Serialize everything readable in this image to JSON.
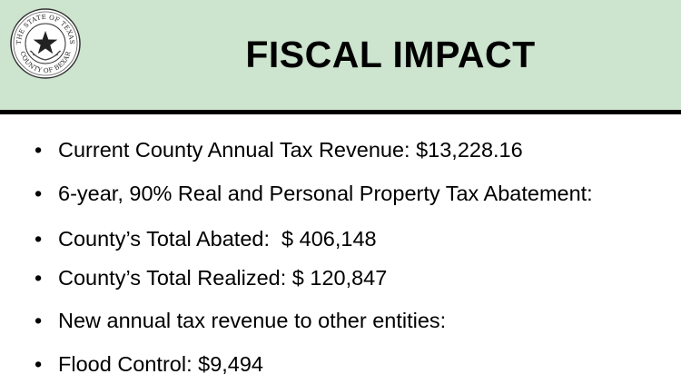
{
  "header": {
    "title": "FISCAL IMPACT",
    "seal": {
      "icon": "county-seal-icon",
      "text_top": "THE STATE OF TEXAS",
      "text_bottom": "COUNTY OF BEXAR"
    },
    "background_color": "#cde4cf"
  },
  "bullets": [
    {
      "marker": "•",
      "text": "Current County Annual Tax Revenue: $13,228.16"
    },
    {
      "marker": "•",
      "text": "6-year, 90% Real and Personal Property Tax Abatement:"
    },
    {
      "marker": "•",
      "text": "County’s Total Abated:  $ 406,148"
    },
    {
      "marker": "•",
      "text": "County’s Total Realized: $ 120,847"
    },
    {
      "marker": "•",
      "text": "New annual tax revenue to other entities:"
    },
    {
      "marker": "•",
      "text": "Flood Control: $9,494"
    }
  ]
}
